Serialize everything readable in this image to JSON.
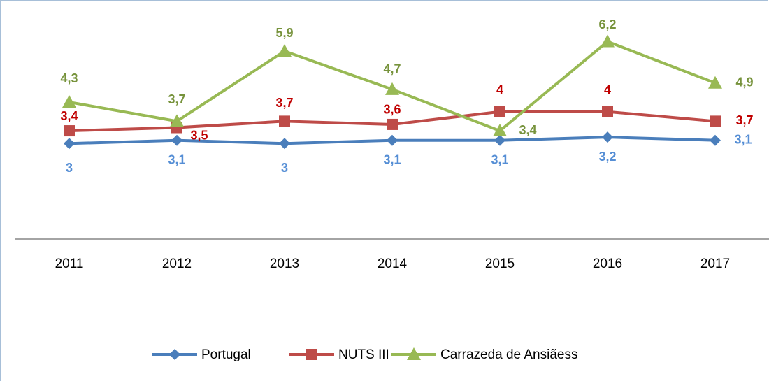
{
  "chart_data": {
    "type": "line",
    "categories": [
      "2011",
      "2012",
      "2013",
      "2014",
      "2015",
      "2016",
      "2017"
    ],
    "ylim": [
      0,
      7
    ],
    "legend": "bottom",
    "series": [
      {
        "name": "Portugal",
        "color": "#4a7ebb",
        "label_color": "#558ed5",
        "marker": "diamond",
        "values": [
          3,
          3.1,
          3,
          3.1,
          3.1,
          3.2,
          3.1
        ],
        "value_labels": [
          "3",
          "3,1",
          "3",
          "3,1",
          "3,1",
          "3,2",
          "3,1"
        ]
      },
      {
        "name": "NUTS III",
        "color": "#be4b48",
        "label_color": "#c00000",
        "marker": "square",
        "values": [
          3.4,
          3.5,
          3.7,
          3.6,
          4,
          4,
          3.7
        ],
        "value_labels": [
          "3,4",
          "3,5",
          "3,7",
          "3,6",
          "4",
          "4",
          "3,7"
        ]
      },
      {
        "name": "Carrazeda de Ansiãess",
        "color": "#98b954",
        "label_color": "#77933c",
        "marker": "triangle",
        "values": [
          4.3,
          3.7,
          5.9,
          4.7,
          3.4,
          6.2,
          4.9
        ],
        "value_labels": [
          "4,3",
          "3,7",
          "5,9",
          "4,7",
          "3,4",
          "6,2",
          "4,9"
        ]
      }
    ]
  }
}
